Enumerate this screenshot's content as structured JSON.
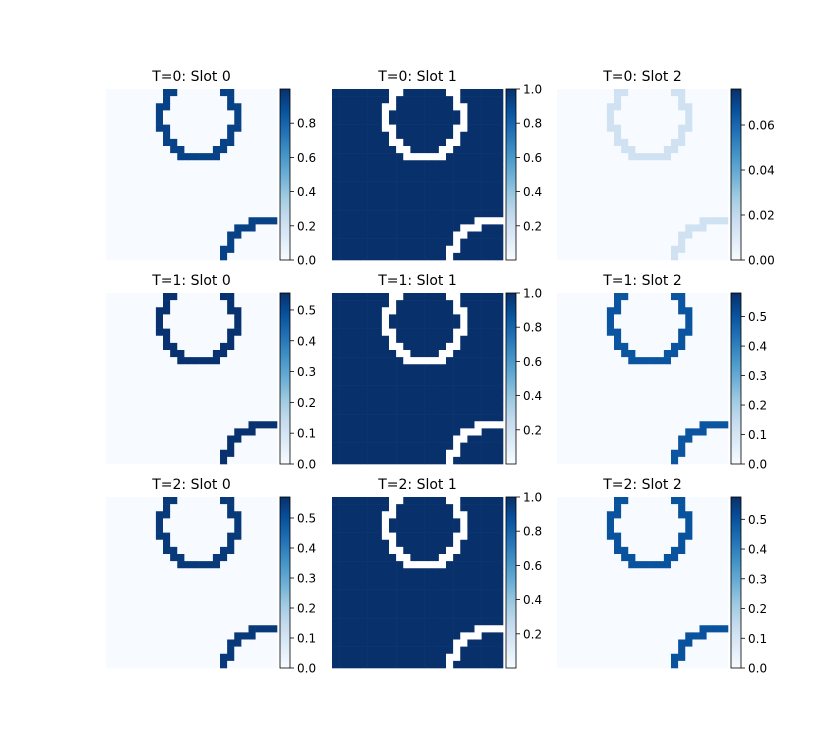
{
  "colormap": {
    "name": "Blues",
    "low": "#f7fbff",
    "high": "#08306b"
  },
  "ring_tint": "#ffffff",
  "chart_data": [
    {
      "type": "heatmap",
      "title": "T=0: Slot 0",
      "row": 0,
      "col": 0,
      "pattern": "rings",
      "fill_value": 0.0,
      "ring_value": 0.93,
      "clim": [
        0,
        1.0
      ],
      "colorbar_ticks": [
        "0.0",
        "0.2",
        "0.4",
        "0.6",
        "0.8"
      ],
      "colorbar_tick_values": [
        0,
        0.2,
        0.4,
        0.6,
        0.8
      ]
    },
    {
      "type": "heatmap",
      "title": "T=0: Slot 1",
      "row": 0,
      "col": 1,
      "pattern": "inverse",
      "fill_value": 1.0,
      "ring_value": 0.0,
      "clim": [
        0.0,
        1.0
      ],
      "colorbar_ticks": [
        "0.2",
        "0.4",
        "0.6",
        "0.8",
        "1.0"
      ],
      "colorbar_tick_values": [
        0.2,
        0.4,
        0.6,
        0.8,
        1.0
      ]
    },
    {
      "type": "heatmap",
      "title": "T=0: Slot 2",
      "row": 0,
      "col": 2,
      "pattern": "faint",
      "fill_value": 0.0,
      "ring_value": 0.015,
      "clim": [
        0,
        0.076
      ],
      "colorbar_ticks": [
        "0.00",
        "0.02",
        "0.04",
        "0.06"
      ],
      "colorbar_tick_values": [
        0,
        0.02,
        0.04,
        0.06
      ]
    },
    {
      "type": "heatmap",
      "title": "T=1: Slot 0",
      "row": 1,
      "col": 0,
      "pattern": "rings",
      "fill_value": 0.0,
      "ring_value": 0.55,
      "clim": [
        0,
        0.555
      ],
      "colorbar_ticks": [
        "0.0",
        "0.1",
        "0.2",
        "0.3",
        "0.4",
        "0.5"
      ],
      "colorbar_tick_values": [
        0,
        0.1,
        0.2,
        0.3,
        0.4,
        0.5
      ]
    },
    {
      "type": "heatmap",
      "title": "T=1: Slot 1",
      "row": 1,
      "col": 1,
      "pattern": "inverse",
      "fill_value": 1.0,
      "ring_value": 0.0,
      "clim": [
        0.0,
        1.0
      ],
      "colorbar_ticks": [
        "0.2",
        "0.4",
        "0.6",
        "0.8",
        "1.0"
      ],
      "colorbar_tick_values": [
        0.2,
        0.4,
        0.6,
        0.8,
        1.0
      ]
    },
    {
      "type": "heatmap",
      "title": "T=1: Slot 2",
      "row": 1,
      "col": 2,
      "pattern": "rings",
      "fill_value": 0.0,
      "ring_value": 0.5,
      "clim": [
        0,
        0.58
      ],
      "colorbar_ticks": [
        "0.0",
        "0.1",
        "0.2",
        "0.3",
        "0.4",
        "0.5"
      ],
      "colorbar_tick_values": [
        0,
        0.1,
        0.2,
        0.3,
        0.4,
        0.5
      ]
    },
    {
      "type": "heatmap",
      "title": "T=2: Slot 0",
      "row": 2,
      "col": 0,
      "pattern": "rings",
      "fill_value": 0.0,
      "ring_value": 0.55,
      "clim": [
        0,
        0.57
      ],
      "colorbar_ticks": [
        "0.0",
        "0.1",
        "0.2",
        "0.3",
        "0.4",
        "0.5"
      ],
      "colorbar_tick_values": [
        0,
        0.1,
        0.2,
        0.3,
        0.4,
        0.5
      ]
    },
    {
      "type": "heatmap",
      "title": "T=2: Slot 1",
      "row": 2,
      "col": 1,
      "pattern": "inverse",
      "fill_value": 1.0,
      "ring_value": 0.0,
      "clim": [
        0.0,
        1.0
      ],
      "colorbar_ticks": [
        "0.2",
        "0.4",
        "0.6",
        "0.8",
        "1.0"
      ],
      "colorbar_tick_values": [
        0.2,
        0.4,
        0.6,
        0.8,
        1.0
      ]
    },
    {
      "type": "heatmap",
      "title": "T=2: Slot 2",
      "row": 2,
      "col": 2,
      "pattern": "rings",
      "fill_value": 0.0,
      "ring_value": 0.5,
      "clim": [
        0,
        0.575
      ],
      "colorbar_ticks": [
        "0.0",
        "0.1",
        "0.2",
        "0.3",
        "0.4",
        "0.5"
      ],
      "colorbar_tick_values": [
        0,
        0.1,
        0.2,
        0.3,
        0.4,
        0.5
      ]
    }
  ]
}
